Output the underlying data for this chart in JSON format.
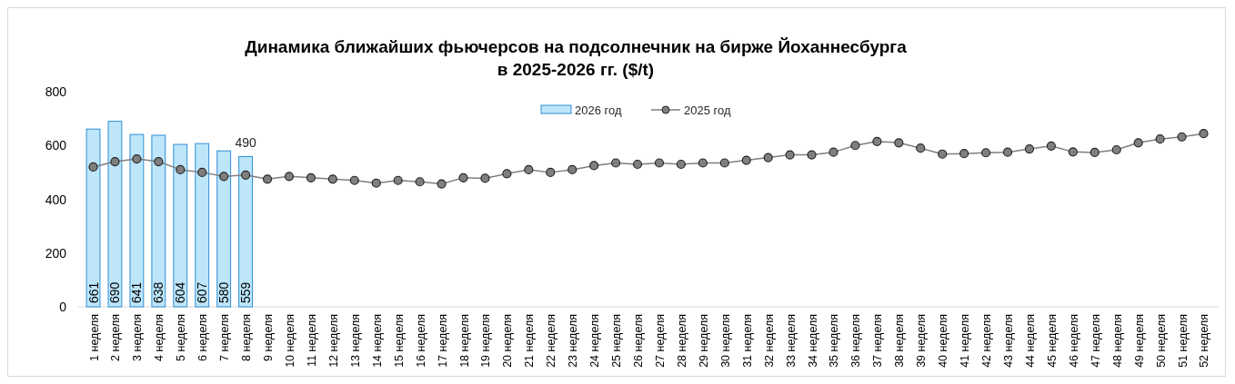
{
  "chart_data": {
    "type": "bar",
    "title": "Динамика ближайших фьючерсов на подсолнечник на бирже Йоханнесбурга\nв 2025-2026 гг. ($/t)",
    "categories": [
      "1 неделя",
      "2 неделя",
      "3 неделя",
      "4 неделя",
      "5 неделя",
      "6 неделя",
      "7 неделя",
      "8 неделя",
      "9 неделя",
      "10 неделя",
      "11 неделя",
      "12 неделя",
      "13 неделя",
      "14 неделя",
      "15 неделя",
      "16 неделя",
      "17 неделя",
      "18 неделя",
      "19 неделя",
      "20 неделя",
      "21 неделя",
      "22 неделя",
      "23 неделя",
      "24 неделя",
      "25 неделя",
      "26 неделя",
      "27 неделя",
      "28 неделя",
      "29 неделя",
      "30 неделя",
      "31 неделя",
      "32 неделя",
      "33 неделя",
      "34 неделя",
      "35 неделя",
      "36 неделя",
      "37 неделя",
      "38 неделя",
      "39 неделя",
      "40 неделя",
      "41 неделя",
      "42 неделя",
      "43 неделя",
      "44 неделя",
      "45 неделя",
      "46 неделя",
      "47 неделя",
      "48 неделя",
      "49 неделя",
      "50 неделя",
      "51 неделя",
      "52 неделя"
    ],
    "series": [
      {
        "name": "2026 год",
        "color": "#bde6fa",
        "values": [
          661,
          690,
          641,
          638,
          604,
          607,
          580,
          559,
          null,
          null,
          null,
          null,
          null,
          null,
          null,
          null,
          null,
          null,
          null,
          null,
          null,
          null,
          null,
          null,
          null,
          null,
          null,
          null,
          null,
          null,
          null,
          null,
          null,
          null,
          null,
          null,
          null,
          null,
          null,
          null,
          null,
          null,
          null,
          null,
          null,
          null,
          null,
          null,
          null,
          null,
          null,
          null
        ],
        "value_labels": [
          "661",
          "690",
          "641",
          "638",
          "604",
          "607",
          "580",
          "559",
          null,
          null,
          null,
          null,
          null,
          null,
          null,
          null,
          null,
          null,
          null,
          null,
          null,
          null,
          null,
          null,
          null,
          null,
          null,
          null,
          null,
          null,
          null,
          null,
          null,
          null,
          null,
          null,
          null,
          null,
          null,
          null,
          null,
          null,
          null,
          null,
          null,
          null,
          null,
          null,
          null,
          null,
          null,
          null
        ]
      },
      {
        "name": "2025 год",
        "type": "line",
        "color": "#7f7f7f",
        "values": [
          520,
          540,
          550,
          540,
          510,
          500,
          485,
          490,
          475,
          485,
          480,
          475,
          470,
          460,
          470,
          465,
          457,
          480,
          478,
          495,
          510,
          500,
          510,
          525,
          535,
          530,
          535,
          530,
          535,
          535,
          545,
          555,
          565,
          565,
          575,
          600,
          615,
          610,
          590,
          568,
          570,
          573,
          575,
          587,
          598,
          576,
          574,
          584,
          610,
          624,
          632,
          644
        ],
        "value_labels": [
          null,
          null,
          null,
          null,
          null,
          null,
          null,
          "490",
          null,
          null,
          null,
          null,
          null,
          null,
          null,
          null,
          null,
          null,
          null,
          null,
          null,
          null,
          null,
          null,
          null,
          null,
          null,
          null,
          null,
          null,
          null,
          null,
          null,
          null,
          null,
          null,
          null,
          null,
          null,
          null,
          null,
          null,
          null,
          null,
          null,
          null,
          null,
          null,
          null,
          null,
          null,
          null
        ]
      }
    ],
    "ylim": [
      0,
      800
    ],
    "yticks": [
      0,
      200,
      400,
      600,
      800
    ],
    "grid": false,
    "legend": "top",
    "marker": "circle"
  }
}
